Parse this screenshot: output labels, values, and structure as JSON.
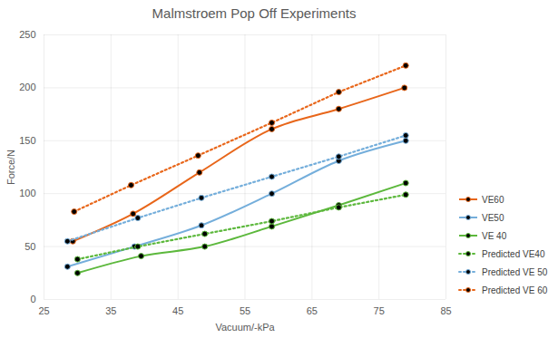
{
  "chart_data": {
    "type": "line",
    "title": "Malmstroem Pop Off Experiments",
    "x_label": "Vacuum/-kPa",
    "y_label": "Force/N",
    "xlim": [
      25,
      85
    ],
    "xticks": [
      25,
      35,
      45,
      55,
      65,
      75,
      85
    ],
    "ylim": [
      0,
      250
    ],
    "yticks": [
      0,
      50,
      100,
      150,
      200,
      250
    ],
    "grid": true,
    "legend": "right",
    "series": [
      {
        "name": "VE60",
        "color": "#e8661a",
        "line_style": "solid",
        "marker": "circle",
        "x": [
          29.3,
          38.3,
          48.2,
          59.0,
          69.0,
          78.8
        ],
        "values": [
          55,
          81,
          120,
          161,
          180,
          200
        ]
      },
      {
        "name": "VE50",
        "color": "#74aedb",
        "line_style": "solid",
        "marker": "circle",
        "x": [
          28.5,
          38.5,
          48.5,
          59.0,
          69.0,
          79.0
        ],
        "values": [
          31,
          50,
          70,
          100,
          131,
          150
        ]
      },
      {
        "name": "VE 40",
        "color": "#5cb83c",
        "line_style": "solid",
        "marker": "circle",
        "x": [
          30.0,
          39.5,
          49.0,
          59.0,
          69.0,
          79.0
        ],
        "values": [
          25,
          41,
          50,
          69,
          89,
          110
        ]
      },
      {
        "name": "Predicted VE40",
        "color": "#5cb83c",
        "line_style": "dotted",
        "marker": "circle",
        "x": [
          30.0,
          39.0,
          49.0,
          59.0,
          69.0,
          79.0
        ],
        "values": [
          38,
          50,
          62,
          74,
          87,
          99
        ]
      },
      {
        "name": "Predicted VE 50",
        "color": "#74aedb",
        "line_style": "dotted",
        "marker": "circle",
        "x": [
          28.5,
          39.0,
          48.5,
          59.0,
          69.0,
          79.0
        ],
        "values": [
          55,
          77,
          96,
          116,
          135,
          155
        ]
      },
      {
        "name": "Predicted VE 60",
        "color": "#e8661a",
        "line_style": "dotted",
        "marker": "circle",
        "x": [
          29.5,
          38.0,
          48.0,
          59.0,
          69.0,
          79.0
        ],
        "values": [
          83,
          108,
          136,
          167,
          196,
          221
        ]
      }
    ]
  }
}
